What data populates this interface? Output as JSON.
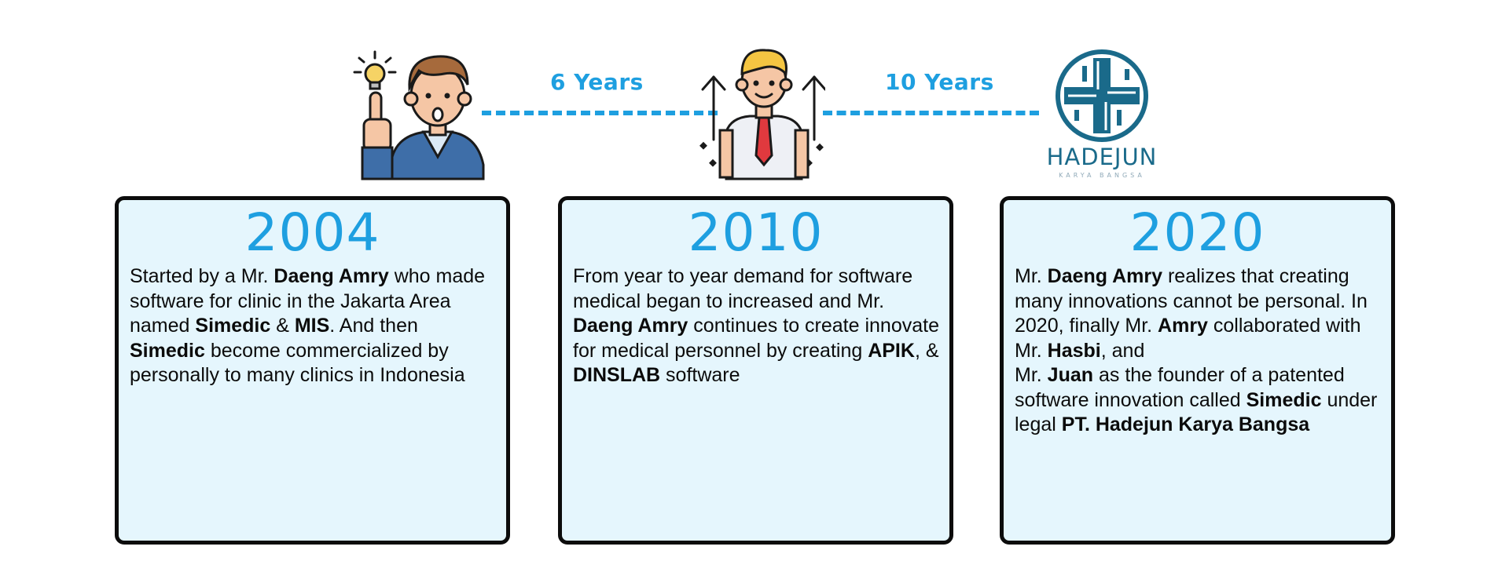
{
  "timeline": {
    "gaps": [
      "6 Years",
      "10 Years"
    ],
    "logo": {
      "name": "HADEJUN",
      "tagline": "KARYA BANGSA"
    },
    "cards": [
      {
        "year": "2004",
        "segments": [
          {
            "t": "Started by a Mr. ",
            "b": false
          },
          {
            "t": "Daeng Amry",
            "b": true
          },
          {
            "t": " who made software for clinic in the Jakarta Area  named ",
            "b": false
          },
          {
            "t": "Simedic",
            "b": true
          },
          {
            "t": " & ",
            "b": false
          },
          {
            "t": "MIS",
            "b": true
          },
          {
            "t": ". And then ",
            "b": false
          },
          {
            "t": "Simedic",
            "b": true
          },
          {
            "t": " become commercialized by personally to many clinics in Indonesia",
            "b": false
          }
        ]
      },
      {
        "year": "2010",
        "segments": [
          {
            "t": "From year to year demand for software medical began to increased and Mr. ",
            "b": false
          },
          {
            "t": "Daeng Amry",
            "b": true
          },
          {
            "t": " continues to create innovate for medical personnel by creating ",
            "b": false
          },
          {
            "t": "APIK",
            "b": true
          },
          {
            "t": ", & ",
            "b": false
          },
          {
            "t": "DINSLAB",
            "b": true
          },
          {
            "t": " software",
            "b": false
          }
        ]
      },
      {
        "year": "2020",
        "segments": [
          {
            "t": "Mr. ",
            "b": false
          },
          {
            "t": "Daeng Amry",
            "b": true
          },
          {
            "t": " realizes that creating many innovations cannot be personal. In 2020, finally Mr. ",
            "b": false
          },
          {
            "t": "Amry",
            "b": true
          },
          {
            "t": " collaborated with Mr. ",
            "b": false
          },
          {
            "t": "Hasbi",
            "b": true
          },
          {
            "t": ", and",
            "b": false
          },
          {
            "t": "\n",
            "b": false
          },
          {
            "t": "Mr. ",
            "b": false
          },
          {
            "t": "Juan",
            "b": true
          },
          {
            "t": " as the founder of a patented software innovation called ",
            "b": false
          },
          {
            "t": "Simedic",
            "b": true
          },
          {
            "t": " under legal ",
            "b": false
          },
          {
            "t": "PT. Hadejun Karya Bangsa",
            "b": true
          }
        ]
      }
    ]
  },
  "colors": {
    "accent": "#1e9fe0",
    "card_bg": "#e5f6fd",
    "card_border": "#0c0c0c",
    "logo": "#1a6a8a"
  },
  "icons": [
    "idea-man-icon",
    "growth-man-icon",
    "hadejun-logo"
  ]
}
